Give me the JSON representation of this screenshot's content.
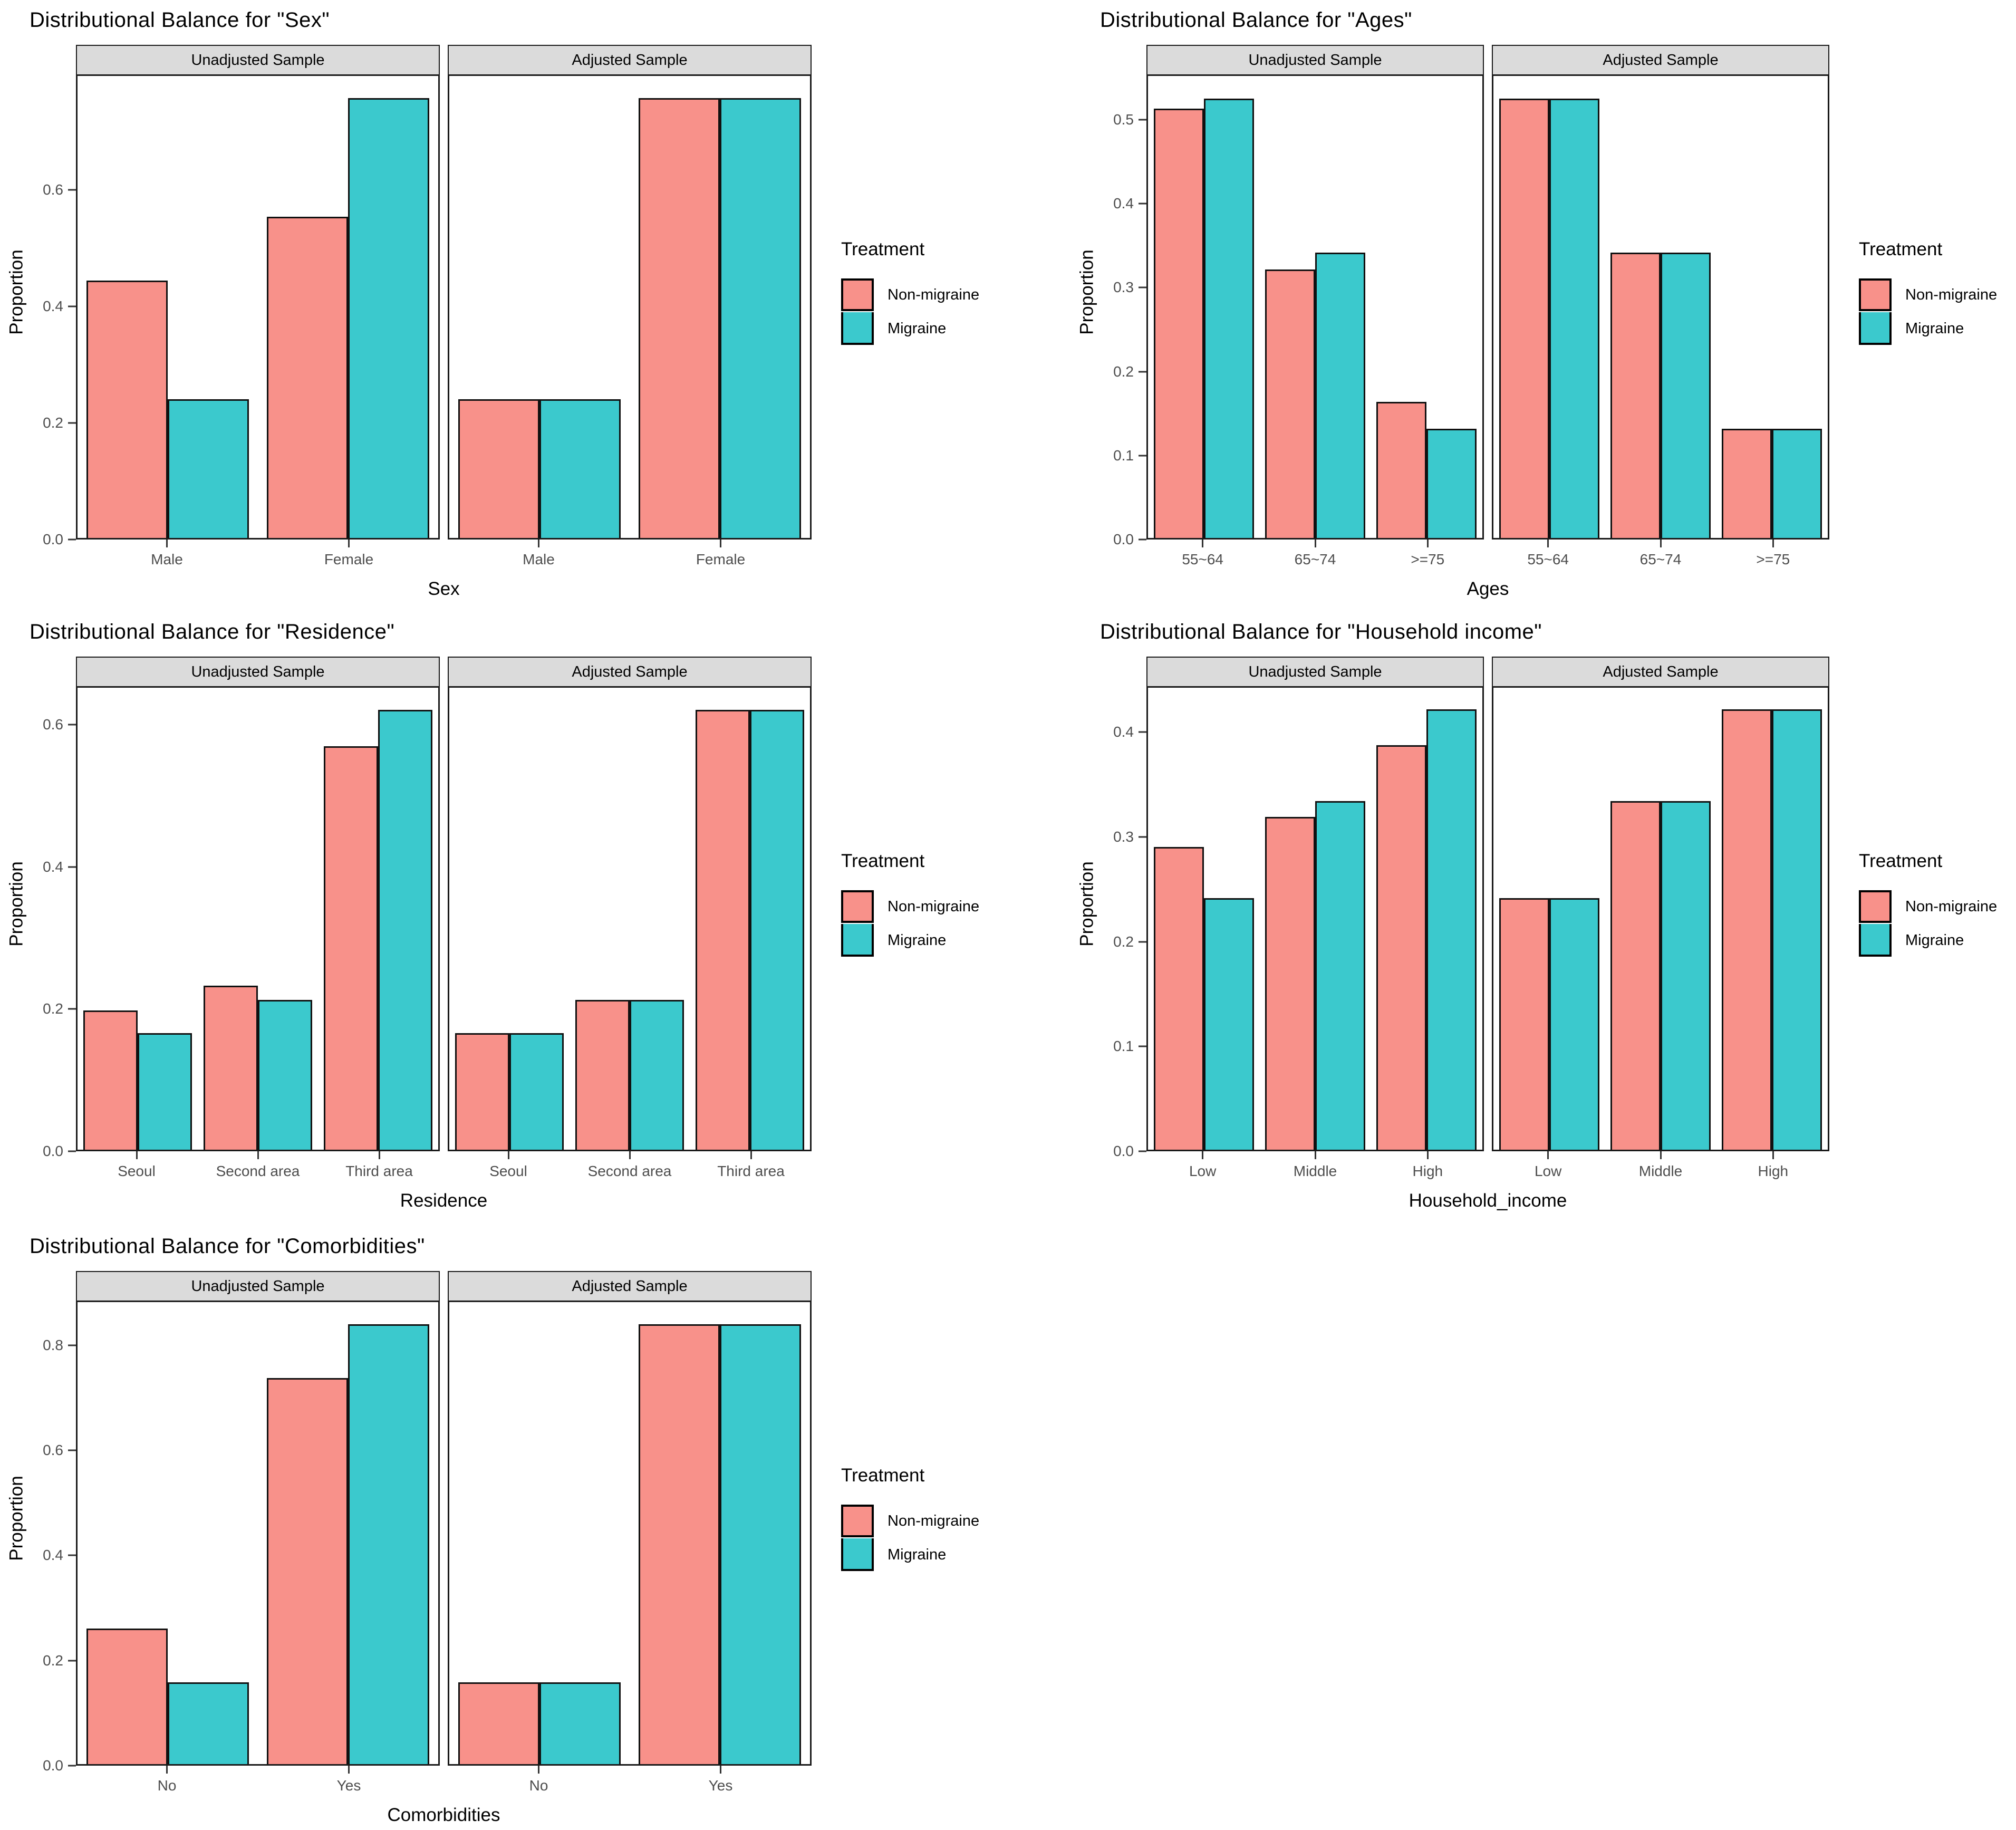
{
  "colors": {
    "non_migraine": "#F8918A",
    "migraine": "#3BC9CD",
    "strip_background": "#DBDBDB",
    "panel_border": "#1A1A1A",
    "bar_outline": "#101010",
    "tick_text": "#4D4D4D",
    "background": "#FFFFFF"
  },
  "legend": {
    "title": "Treatment",
    "items": [
      {
        "label": "Non-migraine",
        "color": "#F8918A"
      },
      {
        "label": "Migraine",
        "color": "#3BC9CD"
      }
    ]
  },
  "y_axis_title": "Proportion",
  "facet_labels": [
    "Unadjusted Sample",
    "Adjusted Sample"
  ],
  "chart_data": [
    {
      "type": "bar",
      "title": "Distributional Balance for \"Sex\"",
      "xlabel": "Sex",
      "ylabel": "Proportion",
      "categories": [
        "Male",
        "Female"
      ],
      "yticks": [
        0.0,
        0.2,
        0.4,
        0.6
      ],
      "ylim": [
        0,
        0.798
      ],
      "grid": false,
      "legend_position": "right",
      "facets": [
        {
          "label": "Unadjusted Sample",
          "series": [
            {
              "name": "Non-migraine",
              "values": [
                0.445,
                0.555
              ]
            },
            {
              "name": "Migraine",
              "values": [
                0.24,
                0.76
              ]
            }
          ]
        },
        {
          "label": "Adjusted Sample",
          "series": [
            {
              "name": "Non-migraine",
              "values": [
                0.24,
                0.76
              ]
            },
            {
              "name": "Migraine",
              "values": [
                0.24,
                0.76
              ]
            }
          ]
        }
      ]
    },
    {
      "type": "bar",
      "title": "Distributional Balance for \"Ages\"",
      "xlabel": "Ages",
      "ylabel": "Proportion",
      "categories": [
        "55~64",
        "65~74",
        ">=75"
      ],
      "yticks": [
        0.0,
        0.1,
        0.2,
        0.3,
        0.4,
        0.5
      ],
      "ylim": [
        0,
        0.554
      ],
      "grid": false,
      "legend_position": "right",
      "facets": [
        {
          "label": "Unadjusted Sample",
          "series": [
            {
              "name": "Non-migraine",
              "values": [
                0.515,
                0.322,
                0.163
              ]
            },
            {
              "name": "Migraine",
              "values": [
                0.527,
                0.342,
                0.131
              ]
            }
          ]
        },
        {
          "label": "Adjusted Sample",
          "series": [
            {
              "name": "Non-migraine",
              "values": [
                0.527,
                0.342,
                0.131
              ]
            },
            {
              "name": "Migraine",
              "values": [
                0.527,
                0.342,
                0.131
              ]
            }
          ]
        }
      ]
    },
    {
      "type": "bar",
      "title": "Distributional Balance for \"Residence\"",
      "xlabel": "Residence",
      "ylabel": "Proportion",
      "categories": [
        "Seoul",
        "Second area",
        "Third area"
      ],
      "yticks": [
        0.0,
        0.2,
        0.4,
        0.6
      ],
      "ylim": [
        0,
        0.654
      ],
      "grid": false,
      "legend_position": "right",
      "facets": [
        {
          "label": "Unadjusted Sample",
          "series": [
            {
              "name": "Non-migraine",
              "values": [
                0.197,
                0.232,
                0.571
              ]
            },
            {
              "name": "Migraine",
              "values": [
                0.165,
                0.212,
                0.623
              ]
            }
          ]
        },
        {
          "label": "Adjusted Sample",
          "series": [
            {
              "name": "Non-migraine",
              "values": [
                0.165,
                0.212,
                0.623
              ]
            },
            {
              "name": "Migraine",
              "values": [
                0.165,
                0.212,
                0.623
              ]
            }
          ]
        }
      ]
    },
    {
      "type": "bar",
      "title": "Distributional Balance for \"Household income\"",
      "xlabel": "Household_income",
      "ylabel": "Proportion",
      "categories": [
        "Low",
        "Middle",
        "High"
      ],
      "yticks": [
        0.0,
        0.1,
        0.2,
        0.3,
        0.4
      ],
      "ylim": [
        0,
        0.444
      ],
      "grid": false,
      "legend_position": "right",
      "facets": [
        {
          "label": "Unadjusted Sample",
          "series": [
            {
              "name": "Non-migraine",
              "values": [
                0.291,
                0.32,
                0.389
              ]
            },
            {
              "name": "Migraine",
              "values": [
                0.242,
                0.335,
                0.423
              ]
            }
          ]
        },
        {
          "label": "Adjusted Sample",
          "series": [
            {
              "name": "Non-migraine",
              "values": [
                0.242,
                0.335,
                0.423
              ]
            },
            {
              "name": "Migraine",
              "values": [
                0.242,
                0.335,
                0.423
              ]
            }
          ]
        }
      ]
    },
    {
      "type": "bar",
      "title": "Distributional Balance for \"Comorbidities\"",
      "xlabel": "Comorbidities",
      "ylabel": "Proportion",
      "categories": [
        "No",
        "Yes"
      ],
      "yticks": [
        0.0,
        0.2,
        0.4,
        0.6,
        0.8
      ],
      "ylim": [
        0,
        0.885
      ],
      "grid": false,
      "legend_position": "right",
      "facets": [
        {
          "label": "Unadjusted Sample",
          "series": [
            {
              "name": "Non-migraine",
              "values": [
                0.26,
                0.74
              ]
            },
            {
              "name": "Migraine",
              "values": [
                0.157,
                0.843
              ]
            }
          ]
        },
        {
          "label": "Adjusted Sample",
          "series": [
            {
              "name": "Non-migraine",
              "values": [
                0.157,
                0.843
              ]
            },
            {
              "name": "Migraine",
              "values": [
                0.157,
                0.843
              ]
            }
          ]
        }
      ]
    }
  ]
}
